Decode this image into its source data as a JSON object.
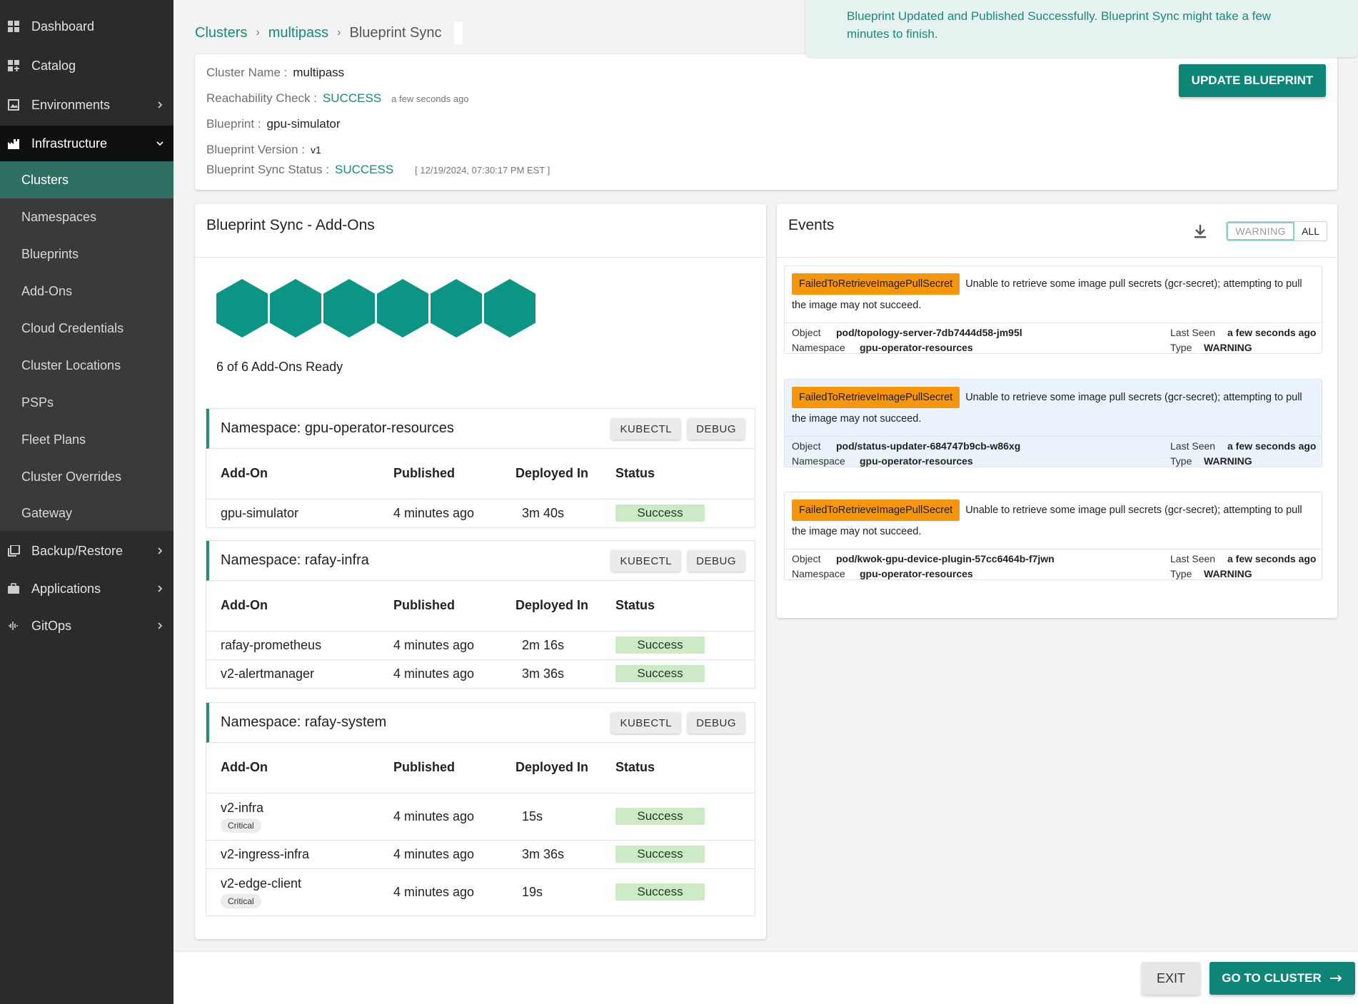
{
  "sidebar": {
    "items": [
      {
        "label": "Dashboard",
        "icon": "grid-icon"
      },
      {
        "label": "Catalog",
        "icon": "catalog-icon"
      },
      {
        "label": "Environments",
        "icon": "image-icon"
      },
      {
        "label": "Infrastructure",
        "icon": "factory-icon"
      }
    ],
    "sub_items": [
      "Clusters",
      "Namespaces",
      "Blueprints",
      "Add-Ons",
      "Cloud Credentials",
      "Cluster Locations",
      "PSPs",
      "Fleet Plans",
      "Cluster Overrides",
      "Gateway"
    ],
    "bottom_items": [
      {
        "label": "Backup/Restore",
        "icon": "backup-icon"
      },
      {
        "label": "Applications",
        "icon": "briefcase-icon"
      },
      {
        "label": "GitOps",
        "icon": "gitops-icon"
      }
    ]
  },
  "breadcrumb": {
    "clusters": "Clusters",
    "cluster": "multipass",
    "current": "Blueprint Sync"
  },
  "toast": {
    "message": "Blueprint Updated and Published Successfully. Blueprint Sync might take a few minutes to finish."
  },
  "info": {
    "cluster_name_label": "Cluster Name :",
    "cluster_name": "multipass",
    "reachability_label": "Reachability Check :",
    "reachability": "SUCCESS",
    "reachability_time": "a few seconds ago",
    "blueprint_label": "Blueprint :",
    "blueprint": "gpu-simulator",
    "version_label": "Blueprint Version :",
    "version": "v1",
    "sync_status_label": "Blueprint Sync Status :",
    "sync_status": "SUCCESS",
    "sync_time": "[ 12/19/2024, 07:30:17 PM EST ]",
    "update_button": "UPDATE BLUEPRINT"
  },
  "addons": {
    "title": "Blueprint Sync - Add-Ons",
    "ready_text": "6 of 6 Add-Ons Ready",
    "kubectl_label": "KUBECTL",
    "debug_label": "DEBUG",
    "headers": [
      "Add-On",
      "Published",
      "Deployed In",
      "Status"
    ],
    "namespaces": [
      {
        "title": "Namespace: gpu-operator-resources",
        "rows": [
          {
            "name": "gpu-simulator",
            "published": "4 minutes ago",
            "deployed": "3m 40s",
            "status": "Success"
          }
        ]
      },
      {
        "title": "Namespace: rafay-infra",
        "rows": [
          {
            "name": "rafay-prometheus",
            "published": "4 minutes ago",
            "deployed": "2m 16s",
            "status": "Success"
          },
          {
            "name": "v2-alertmanager",
            "published": "4 minutes ago",
            "deployed": "3m 36s",
            "status": "Success"
          }
        ]
      },
      {
        "title": "Namespace: rafay-system",
        "rows": [
          {
            "name": "v2-infra",
            "badge": "Critical",
            "published": "4 minutes ago",
            "deployed": "15s",
            "status": "Success"
          },
          {
            "name": "v2-ingress-infra",
            "published": "4 minutes ago",
            "deployed": "3m 36s",
            "status": "Success"
          },
          {
            "name": "v2-edge-client",
            "badge": "Critical",
            "published": "4 minutes ago",
            "deployed": "19s",
            "status": "Success"
          }
        ]
      }
    ]
  },
  "events": {
    "title": "Events",
    "filter_warning": "WARNING",
    "filter_all": "ALL",
    "object_label": "Object",
    "namespace_label": "Namespace",
    "last_seen_label": "Last Seen",
    "type_label": "Type",
    "items": [
      {
        "reason": "FailedToRetrieveImagePullSecret",
        "message": "Unable to retrieve some image pull secrets (gcr-secret); attempting to pull the image may not succeed.",
        "object": "pod/topology-server-7db7444d58-jm95l",
        "namespace": "gpu-operator-resources",
        "last_seen": "a few seconds ago",
        "type": "WARNING"
      },
      {
        "reason": "FailedToRetrieveImagePullSecret",
        "message": "Unable to retrieve some image pull secrets (gcr-secret); attempting to pull the image may not succeed.",
        "object": "pod/status-updater-684747b9cb-w86xg",
        "namespace": "gpu-operator-resources",
        "last_seen": "a few seconds ago",
        "type": "WARNING"
      },
      {
        "reason": "FailedToRetrieveImagePullSecret",
        "message": "Unable to retrieve some image pull secrets (gcr-secret); attempting to pull the image may not succeed.",
        "object": "pod/kwok-gpu-device-plugin-57cc6464b-f7jwn",
        "namespace": "gpu-operator-resources",
        "last_seen": "a few seconds ago",
        "type": "WARNING"
      }
    ]
  },
  "footer": {
    "exit": "EXIT",
    "go": "GO TO CLUSTER"
  },
  "colors": {
    "accent": "#0f8577",
    "sidebar_bg": "#2b2b2b",
    "active_item": "#2f6f62",
    "warning_badge": "#f5960c",
    "success_pill": "#cdeac6"
  }
}
